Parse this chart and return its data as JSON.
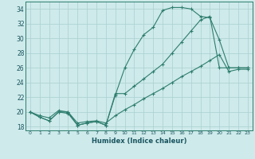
{
  "xlabel": "Humidex (Indice chaleur)",
  "bg_color": "#ceeaea",
  "grid_color": "#aacfcf",
  "line_color": "#2e7d6e",
  "xlim": [
    -0.5,
    23.5
  ],
  "ylim": [
    17.5,
    35.0
  ],
  "xticks": [
    0,
    1,
    2,
    3,
    4,
    5,
    6,
    7,
    8,
    9,
    10,
    11,
    12,
    13,
    14,
    15,
    16,
    17,
    18,
    19,
    20,
    21,
    22,
    23
  ],
  "yticks": [
    18,
    20,
    22,
    24,
    26,
    28,
    30,
    32,
    34
  ],
  "line1": [
    20,
    19.3,
    18.8,
    20.0,
    20.0,
    18.2,
    18.5,
    18.7,
    18.2,
    22.3,
    26.0,
    28.5,
    30.5,
    31.5,
    33.8,
    34.2,
    34.2,
    34.0,
    33.0,
    32.8,
    29.8,
    26.0,
    26.0,
    26.0
  ],
  "line2": [
    20,
    19.3,
    18.8,
    20.0,
    19.8,
    18.2,
    18.5,
    18.7,
    18.2,
    22.5,
    22.5,
    23.5,
    24.5,
    25.5,
    26.5,
    28.0,
    29.5,
    31.0,
    32.5,
    33.0,
    26.0,
    26.0,
    26.0,
    26.0
  ],
  "line3": [
    20,
    19.5,
    19.2,
    20.2,
    20.0,
    18.5,
    18.7,
    18.8,
    18.5,
    19.5,
    20.3,
    21.0,
    21.8,
    22.5,
    23.2,
    24.0,
    24.8,
    25.5,
    26.2,
    27.0,
    27.8,
    25.5,
    25.8,
    25.8
  ]
}
